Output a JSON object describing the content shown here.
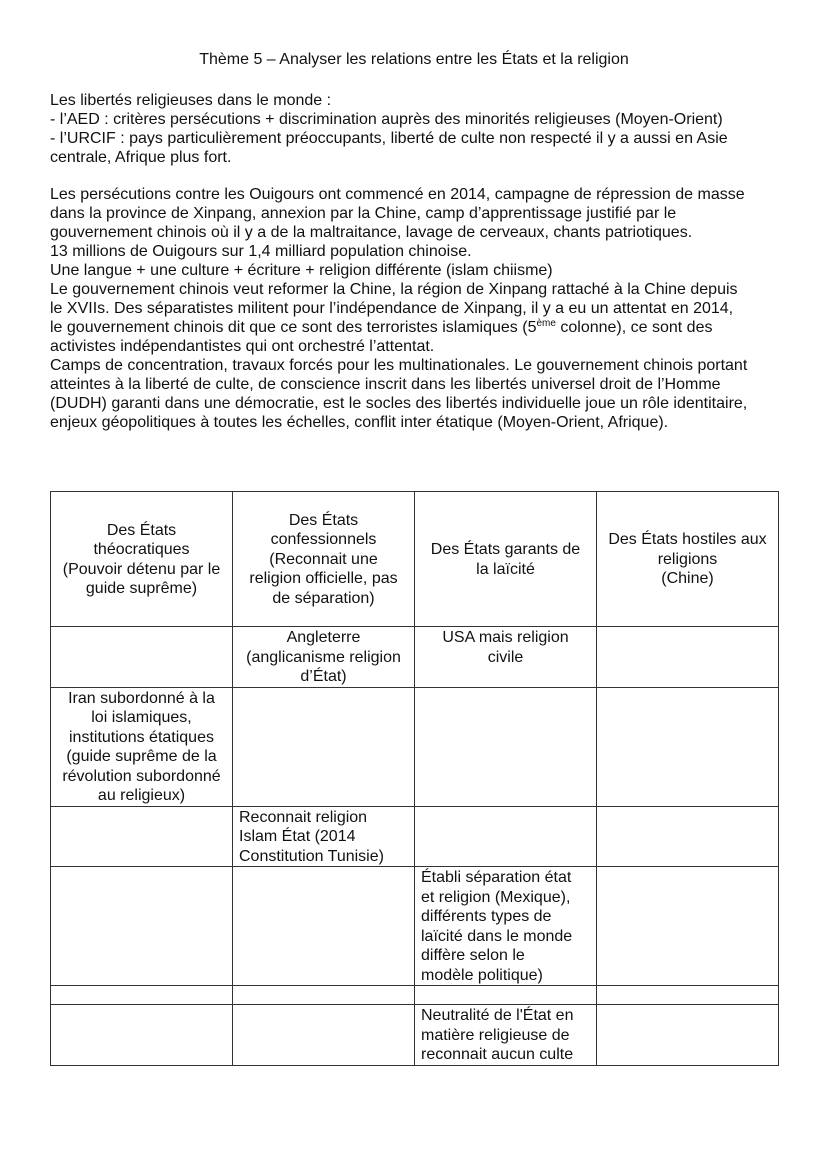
{
  "title": "Thème 5 – Analyser les relations entre les États et la religion",
  "intro": [
    "Les libertés religieuses dans le monde :",
    "- l’AED : critères persécutions + discrimination auprès des minorités religieuses (Moyen-Orient)",
    "- l’URCIF : pays particulièrement préoccupants, liberté de culte non respecté il y a aussi en Asie",
    "centrale, Afrique plus fort."
  ],
  "body": [
    "Les persécutions contre les Ouigours ont commencé en 2014, campagne de répression de masse",
    "dans la province de Xinpang, annexion par la Chine, camp d’apprentissage justifié par le",
    "gouvernement chinois où il y a de la maltraitance, lavage de cerveaux, chants patriotiques.",
    "13 millions de Ouigours sur 1,4 milliard population chinoise.",
    "Une langue + une culture + écriture + religion différente (islam chiisme)",
    "Le gouvernement chinois veut reformer la Chine, la région de Xinpang rattaché à la Chine depuis",
    "le XVIIs. Des séparatistes militent pour l’indépendance de Xinpang, il y a eu un attentat en 2014,",
    "le gouvernement chinois dit que ce sont des terroristes islamiques (5",
    "ème",
    " colonne), ce sont des",
    "activistes indépendantistes qui ont orchestré l’attentat.",
    "Camps de concentration, travaux forcés pour les multinationales. Le gouvernement chinois portant",
    "atteintes à la liberté de culte, de conscience inscrit dans les libertés universel droit de l’Homme",
    "(DUDH) garanti dans une démocratie, est le socles des libertés individuelle joue un rôle identitaire,",
    "enjeux géopolitiques à toutes les échelles, conflit inter étatique (Moyen-Orient, Afrique)."
  ],
  "table": {
    "headers": [
      "Des États\nthéocratiques\n(Pouvoir détenu par le\nguide suprême)",
      "Des États\nconfessionnels\n(Reconnait une\nreligion officielle, pas\nde séparation)",
      "Des États garants de\nla laïcité",
      "Des États hostiles aux\nreligions\n(Chine)"
    ],
    "rows": [
      [
        "",
        "Angleterre\n(anglicanisme religion\nd’État)",
        "USA mais religion\ncivile",
        ""
      ],
      [
        "Iran subordonné à la\nloi islamiques,\ninstitutions étatiques\n(guide suprême de la\nrévolution subordonné\nau religieux)",
        "",
        "",
        ""
      ],
      [
        "",
        "Reconnait religion\nIslam État (2014\nConstitution Tunisie)",
        "",
        ""
      ],
      [
        "",
        "",
        "Établi séparation état\net religion (Mexique),\ndifférents types de\nlaïcité dans le monde\ndiffère selon le\nmodèle politique)",
        ""
      ],
      [
        "",
        "",
        "",
        ""
      ],
      [
        "",
        "",
        "Neutralité de l'État en\nmatière religieuse de\nreconnait aucun culte",
        ""
      ]
    ]
  }
}
